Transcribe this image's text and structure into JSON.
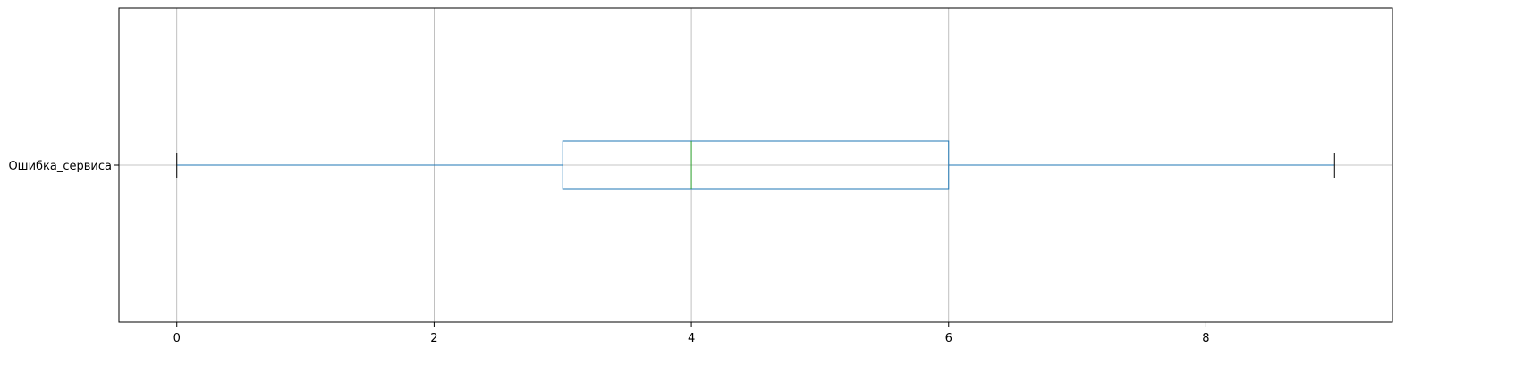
{
  "chart_data": {
    "type": "boxplot",
    "orientation": "horizontal",
    "categories": [
      "Ошибка_сервиса"
    ],
    "boxes": [
      {
        "category": "Ошибка_сервиса",
        "whisker_low": 0,
        "q1": 3,
        "median": 4,
        "q3": 6,
        "whisker_high": 9
      }
    ],
    "xlim": [
      -0.45,
      9.45
    ],
    "x_ticks": [
      0,
      2,
      4,
      6,
      8
    ],
    "grid": true,
    "title": "",
    "xlabel": "",
    "ylabel": "",
    "colors": {
      "box": "#1f77b4",
      "median": "#2ca02c",
      "whisker_cap": "#000000",
      "grid": "#b0b0b0",
      "axes": "#000000"
    }
  }
}
